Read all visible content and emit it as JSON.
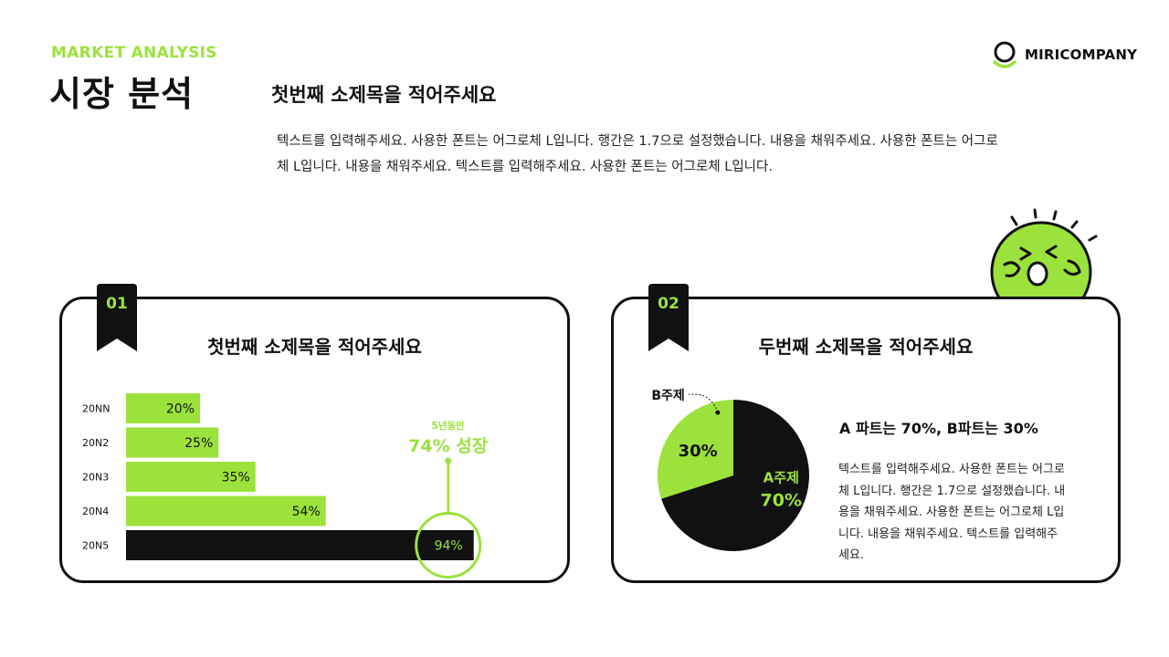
{
  "header": {
    "eyebrow": "MARKET ANALYSIS",
    "title": "시장 분석",
    "subtitle": "첫번째 소제목을 적어주세요",
    "description": "텍스트를 입력해주세요. 사용한 폰트는 어그로체 L입니다. 행간은 1.7으로 설정했습니다. 내용을 채워주세요. 사용한 폰트는 어그로체 L입니다. 내용을 채워주세요. 텍스트를 입력해주세요. 사용한 폰트는 어그로체 L입니다."
  },
  "brand": {
    "name": "MIRICOMPANY",
    "logo_icon": "circle-smile-logo-icon"
  },
  "colors": {
    "accent": "#9be23c",
    "dark": "#111111",
    "background": "#ffffff"
  },
  "cards": [
    {
      "number": "01",
      "title": "첫번째 소제목을 적어주세요"
    },
    {
      "number": "02",
      "title": "두번째 소제목을 적어주세요"
    }
  ],
  "pie_info": {
    "title": "A 파트는 70%, B파트는 30%",
    "text": "텍스트를 입력해주세요. 사용한 폰트는 어그로체 L입니다. 행간은 1.7으로 설정했습니다. 내용을 채워주세요. 사용한 폰트는 어그로체 L입니다. 내용을 채워주세요. 텍스트를 입력해주세요."
  },
  "chart_data": [
    {
      "type": "bar",
      "orientation": "horizontal",
      "categories": [
        "20NN",
        "20N2",
        "20N3",
        "20N4",
        "20N5"
      ],
      "values": [
        20,
        25,
        35,
        54,
        94
      ],
      "labels": [
        "20%",
        "25%",
        "35%",
        "54%",
        "94%"
      ],
      "highlight_index": 4,
      "xlim": [
        0,
        100
      ],
      "annotation": {
        "small": "5년동안",
        "big": "74% 성장"
      }
    },
    {
      "type": "pie",
      "slices": [
        {
          "name": "A주제",
          "value": 70,
          "label": "70%",
          "color": "#111111",
          "text_color": "#9be23c"
        },
        {
          "name": "B주제",
          "value": 30,
          "label": "30%",
          "color": "#9be23c",
          "text_color": "#111111"
        }
      ]
    }
  ],
  "mascot": {
    "icon": "cheering-mascot-icon"
  }
}
